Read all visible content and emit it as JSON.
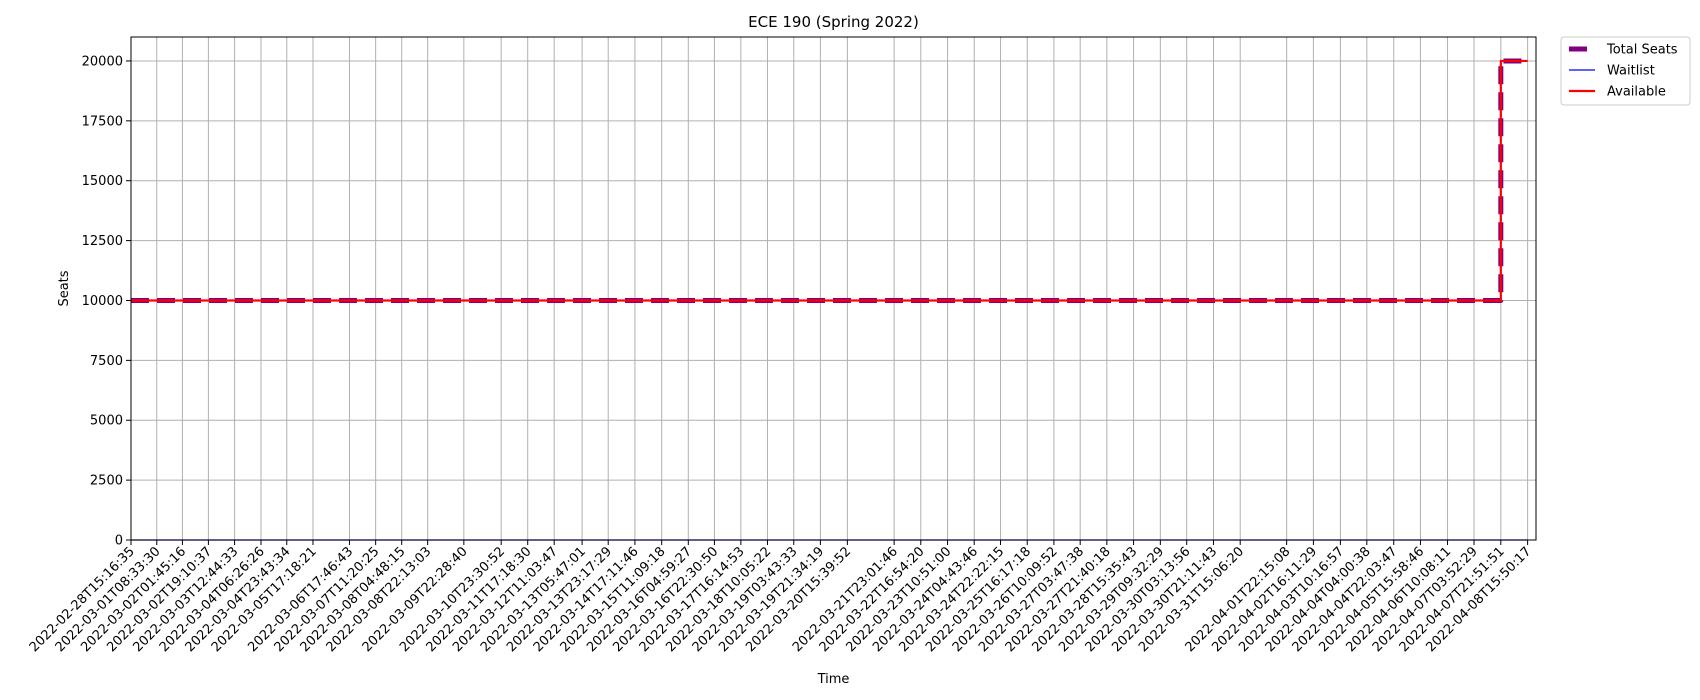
{
  "chart_data": {
    "type": "line",
    "title": "ECE 190 (Spring 2022)",
    "xlabel": "Time",
    "ylabel": "Seats",
    "ylim": [
      0,
      21000
    ],
    "yticks": [
      0,
      2500,
      5000,
      7500,
      10000,
      12500,
      15000,
      17500,
      20000
    ],
    "grid": true,
    "legend_position": "outside top-right",
    "xticks": [
      "2022-02-28T15:16:35",
      "2022-03-01T08:33:30",
      "2022-03-02T01:45:16",
      "2022-03-02T19:10:37",
      "2022-03-03T12:44:33",
      "2022-03-04T06:26:26",
      "2022-03-04T23:43:34",
      "2022-03-05T17:18:21",
      "2022-03-06T17:46:43",
      "2022-03-07T11:20:25",
      "2022-03-08T04:48:15",
      "2022-03-08T22:13:03",
      "2022-03-09T22:28:40",
      "2022-03-10T23:30:52",
      "2022-03-11T17:18:30",
      "2022-03-12T11:03:47",
      "2022-03-13T05:47:01",
      "2022-03-13T23:17:29",
      "2022-03-14T17:11:46",
      "2022-03-15T11:09:18",
      "2022-03-16T04:59:27",
      "2022-03-16T22:30:50",
      "2022-03-17T16:14:53",
      "2022-03-18T10:05:22",
      "2022-03-19T03:43:33",
      "2022-03-19T21:34:19",
      "2022-03-20T15:39:52",
      "2022-03-21T23:01:46",
      "2022-03-22T16:54:20",
      "2022-03-23T10:51:00",
      "2022-03-24T04:43:46",
      "2022-03-24T22:22:15",
      "2022-03-25T16:17:18",
      "2022-03-26T10:09:52",
      "2022-03-27T03:47:38",
      "2022-03-27T21:40:18",
      "2022-03-28T15:35:43",
      "2022-03-29T09:32:29",
      "2022-03-30T03:13:56",
      "2022-03-30T21:11:43",
      "2022-03-31T15:06:20",
      "2022-04-01T22:15:08",
      "2022-04-02T16:11:29",
      "2022-04-03T10:16:57",
      "2022-04-04T04:00:38",
      "2022-04-04T22:03:47",
      "2022-04-05T15:58:46",
      "2022-04-06T10:08:11",
      "2022-04-07T03:52:29",
      "2022-04-07T21:51:51",
      "2022-04-08T15:50:17"
    ],
    "series": [
      {
        "name": "Total Seats",
        "color": "#800080",
        "style": "dashed",
        "x": [
          "2022-02-28T15:16:35",
          "2022-04-07T21:51:51",
          "2022-04-07T21:51:51",
          "2022-04-08T15:50:17"
        ],
        "values": [
          10000,
          10000,
          20000,
          20000
        ]
      },
      {
        "name": "Waitlist",
        "color": "#0000ff",
        "style": "solid",
        "x": [
          "2022-02-28T15:16:35",
          "2022-04-08T15:50:17"
        ],
        "values": [
          0,
          0
        ]
      },
      {
        "name": "Available",
        "color": "#ff0000",
        "style": "solid",
        "x": [
          "2022-02-28T15:16:35",
          "2022-04-07T21:51:51",
          "2022-04-07T21:51:51",
          "2022-04-08T15:50:17"
        ],
        "values": [
          10000,
          10000,
          20000,
          20000
        ]
      }
    ]
  }
}
